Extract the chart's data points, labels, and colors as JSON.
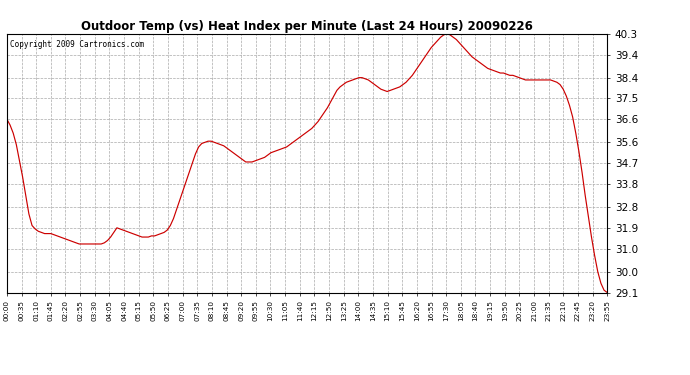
{
  "title": "Outdoor Temp (vs) Heat Index per Minute (Last 24 Hours) 20090226",
  "copyright": "Copyright 2009 Cartronics.com",
  "line_color": "#cc0000",
  "background_color": "#ffffff",
  "grid_color": "#aaaaaa",
  "ylim": [
    29.1,
    40.3
  ],
  "yticks": [
    29.1,
    30.0,
    31.0,
    31.9,
    32.8,
    33.8,
    34.7,
    35.6,
    36.6,
    37.5,
    38.4,
    39.4,
    40.3
  ],
  "xtick_labels": [
    "00:00",
    "00:35",
    "01:10",
    "01:45",
    "02:20",
    "02:55",
    "03:30",
    "04:05",
    "04:40",
    "05:15",
    "05:50",
    "06:25",
    "07:00",
    "07:35",
    "08:10",
    "08:45",
    "09:20",
    "09:55",
    "10:30",
    "11:05",
    "11:40",
    "12:15",
    "12:50",
    "13:25",
    "14:00",
    "14:35",
    "15:10",
    "15:45",
    "16:20",
    "16:55",
    "17:30",
    "18:05",
    "18:40",
    "19:15",
    "19:50",
    "20:25",
    "21:00",
    "21:35",
    "22:10",
    "22:45",
    "23:20",
    "23:55"
  ],
  "data_points": [
    36.6,
    36.35,
    36.0,
    35.5,
    34.8,
    34.1,
    33.3,
    32.5,
    32.0,
    31.85,
    31.75,
    31.7,
    31.65,
    31.65,
    31.65,
    31.6,
    31.55,
    31.5,
    31.45,
    31.4,
    31.35,
    31.3,
    31.25,
    31.2,
    31.2,
    31.2,
    31.2,
    31.2,
    31.2,
    31.2,
    31.2,
    31.25,
    31.35,
    31.5,
    31.7,
    31.9,
    31.85,
    31.8,
    31.75,
    31.7,
    31.65,
    31.6,
    31.55,
    31.5,
    31.5,
    31.5,
    31.55,
    31.55,
    31.6,
    31.65,
    31.7,
    31.8,
    32.0,
    32.3,
    32.7,
    33.1,
    33.5,
    33.9,
    34.3,
    34.7,
    35.1,
    35.4,
    35.55,
    35.6,
    35.65,
    35.65,
    35.6,
    35.55,
    35.5,
    35.45,
    35.35,
    35.25,
    35.15,
    35.05,
    34.95,
    34.85,
    34.75,
    34.75,
    34.75,
    34.8,
    34.85,
    34.9,
    34.95,
    35.05,
    35.15,
    35.2,
    35.25,
    35.3,
    35.35,
    35.4,
    35.5,
    35.6,
    35.7,
    35.8,
    35.9,
    36.0,
    36.1,
    36.2,
    36.35,
    36.5,
    36.7,
    36.9,
    37.1,
    37.35,
    37.6,
    37.85,
    38.0,
    38.1,
    38.2,
    38.25,
    38.3,
    38.35,
    38.4,
    38.4,
    38.35,
    38.3,
    38.2,
    38.1,
    38.0,
    37.9,
    37.85,
    37.8,
    37.85,
    37.9,
    37.95,
    38.0,
    38.1,
    38.2,
    38.35,
    38.5,
    38.7,
    38.9,
    39.1,
    39.3,
    39.5,
    39.7,
    39.85,
    40.0,
    40.15,
    40.25,
    40.3,
    40.25,
    40.15,
    40.05,
    39.9,
    39.75,
    39.6,
    39.45,
    39.3,
    39.2,
    39.1,
    39.0,
    38.9,
    38.8,
    38.75,
    38.7,
    38.65,
    38.6,
    38.6,
    38.55,
    38.5,
    38.5,
    38.45,
    38.4,
    38.35,
    38.3,
    38.3,
    38.3,
    38.3,
    38.3,
    38.3,
    38.3,
    38.3,
    38.3,
    38.25,
    38.2,
    38.1,
    37.9,
    37.6,
    37.2,
    36.7,
    36.0,
    35.2,
    34.3,
    33.3,
    32.4,
    31.5,
    30.7,
    30.0,
    29.5,
    29.2,
    29.1
  ]
}
